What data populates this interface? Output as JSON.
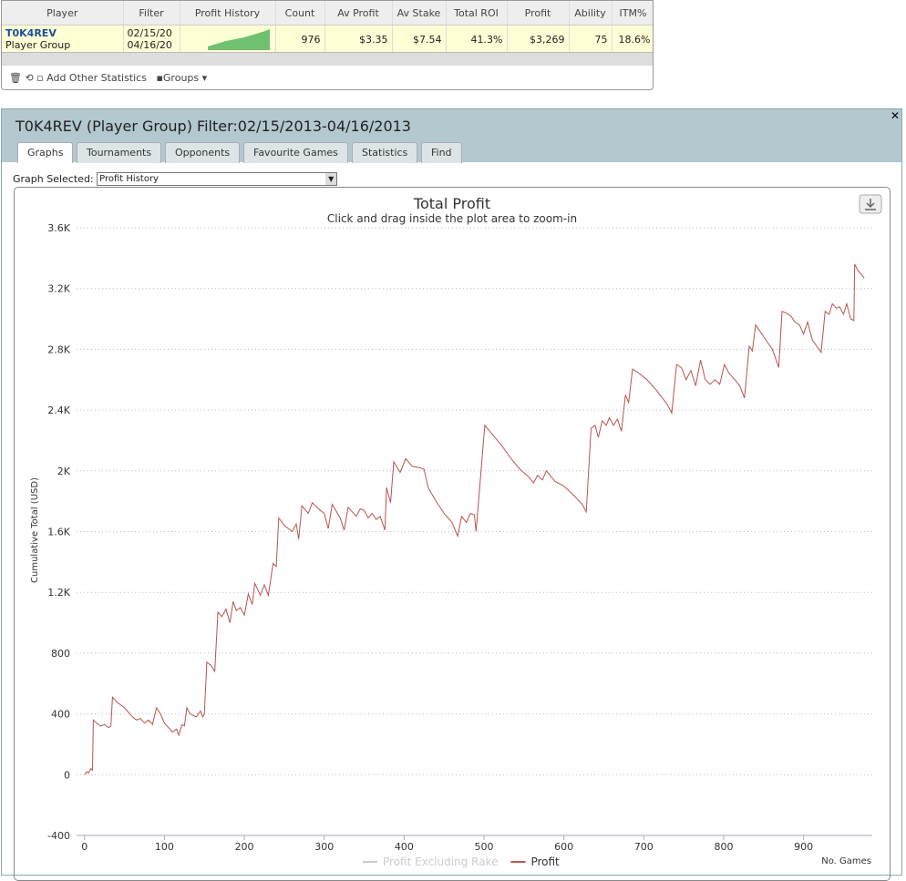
{
  "table": {
    "headers": [
      "Player",
      "Filter",
      "Profit History",
      "Count",
      "Av Profit",
      "Av Stake",
      "Total ROI",
      "Profit",
      "Ability",
      "ITM%"
    ],
    "row": {
      "player": "T0K4REV",
      "group": "Player Group",
      "filter_from": "02/15/20",
      "filter_to": "04/16/20",
      "count": "976",
      "av_profit": "$3.35",
      "av_stake": "$7.54",
      "total_roi": "41.3%",
      "profit": "$3,269",
      "ability": "75",
      "itm": "18.6%"
    }
  },
  "toolbar": {
    "add_stats": "Add Other Statistics",
    "groups": "Groups"
  },
  "panel": {
    "title": "T0K4REV (Player Group) Filter:02/15/2013-04/16/2013",
    "tabs": [
      "Graphs",
      "Tournaments",
      "Opponents",
      "Favourite Games",
      "Statistics",
      "Find"
    ],
    "graph_label": "Graph Selected:",
    "graph_value": "Profit History"
  },
  "chart_data": {
    "type": "line",
    "title": "Total Profit",
    "subtitle": "Click and drag inside the plot area to zoom-in",
    "ylabel": "Cumulative Total (USD)",
    "xlabel": "No. Games",
    "xlim": [
      -10,
      986
    ],
    "xticks": [
      0,
      100,
      200,
      300,
      400,
      500,
      600,
      700,
      800,
      900
    ],
    "ylim": [
      -400,
      3600
    ],
    "yticks": [
      -400,
      0,
      400,
      800,
      {
        "value": 1200,
        "label": "1.2K"
      },
      {
        "value": 1600,
        "label": "1.6K"
      },
      {
        "value": 2000,
        "label": "2K"
      },
      {
        "value": 2400,
        "label": "2.4K"
      },
      {
        "value": 2800,
        "label": "2.8K"
      },
      {
        "value": 3200,
        "label": "3.2K"
      },
      {
        "value": 3600,
        "label": "3.6K"
      }
    ],
    "grid": true,
    "series": [
      {
        "name": "Profit Excluding Rake",
        "color": "#cccccc",
        "x": [],
        "values": []
      },
      {
        "name": "Profit",
        "color": "#b85450",
        "x": [
          0,
          3,
          5,
          8,
          10,
          11,
          15,
          20,
          25,
          30,
          33,
          35,
          40,
          50,
          60,
          65,
          70,
          75,
          80,
          85,
          90,
          95,
          100,
          110,
          115,
          118,
          122,
          125,
          128,
          132,
          140,
          145,
          148,
          150,
          153,
          158,
          163,
          167,
          172,
          177,
          182,
          186,
          190,
          195,
          200,
          205,
          210,
          213,
          220,
          225,
          230,
          236,
          240,
          243,
          250,
          260,
          265,
          268,
          272,
          280,
          285,
          295,
          300,
          305,
          310,
          320,
          325,
          330,
          340,
          345,
          350,
          355,
          360,
          365,
          370,
          376,
          378,
          383,
          387,
          395,
          402,
          410,
          420,
          425,
          430,
          440,
          450,
          460,
          467,
          472,
          478,
          483,
          488,
          490,
          501,
          512,
          523,
          534,
          545,
          556,
          562,
          567,
          573,
          578,
          589,
          600,
          612,
          623,
          628,
          634,
          639,
          643,
          648,
          653,
          657,
          662,
          667,
          672,
          677,
          681,
          686,
          692,
          704,
          716,
          729,
          735,
          741,
          747,
          753,
          759,
          765,
          771,
          777,
          783,
          789,
          795,
          801,
          807,
          814,
          820,
          826,
          832,
          836,
          840,
          844,
          853,
          861,
          869,
          873,
          878,
          884,
          889,
          895,
          900,
          905,
          911,
          922,
          927,
          932,
          936,
          941,
          945,
          950,
          954,
          959,
          963,
          964,
          968,
          976
        ],
        "values": [
          0,
          20,
          10,
          40,
          30,
          360,
          340,
          320,
          330,
          310,
          320,
          510,
          480,
          440,
          380,
          360,
          370,
          340,
          360,
          330,
          440,
          400,
          340,
          280,
          300,
          260,
          330,
          320,
          440,
          400,
          380,
          420,
          380,
          400,
          740,
          720,
          680,
          1070,
          1040,
          1090,
          1000,
          1140,
          1080,
          1100,
          1050,
          1190,
          1120,
          1260,
          1180,
          1250,
          1180,
          1390,
          1370,
          1690,
          1640,
          1600,
          1650,
          1550,
          1770,
          1720,
          1790,
          1740,
          1720,
          1620,
          1780,
          1690,
          1610,
          1760,
          1700,
          1750,
          1740,
          1690,
          1720,
          1680,
          1700,
          1610,
          1890,
          1790,
          2060,
          1990,
          2080,
          2030,
          2020,
          2010,
          1890,
          1800,
          1720,
          1660,
          1570,
          1700,
          1660,
          1720,
          1710,
          1600,
          2300,
          2230,
          2160,
          2080,
          2010,
          1960,
          1920,
          1970,
          1940,
          2000,
          1930,
          1900,
          1840,
          1780,
          1730,
          2280,
          2300,
          2220,
          2330,
          2300,
          2350,
          2300,
          2340,
          2260,
          2500,
          2450,
          2670,
          2650,
          2600,
          2530,
          2440,
          2380,
          2700,
          2680,
          2600,
          2660,
          2560,
          2730,
          2600,
          2570,
          2600,
          2570,
          2700,
          2640,
          2600,
          2560,
          2480,
          2820,
          2790,
          2960,
          2930,
          2860,
          2800,
          2680,
          3050,
          3040,
          3020,
          2980,
          2960,
          2900,
          2980,
          2860,
          2780,
          3050,
          3030,
          3100,
          3070,
          3080,
          3030,
          3100,
          3000,
          2990,
          3360,
          3320,
          3269
        ]
      }
    ]
  }
}
